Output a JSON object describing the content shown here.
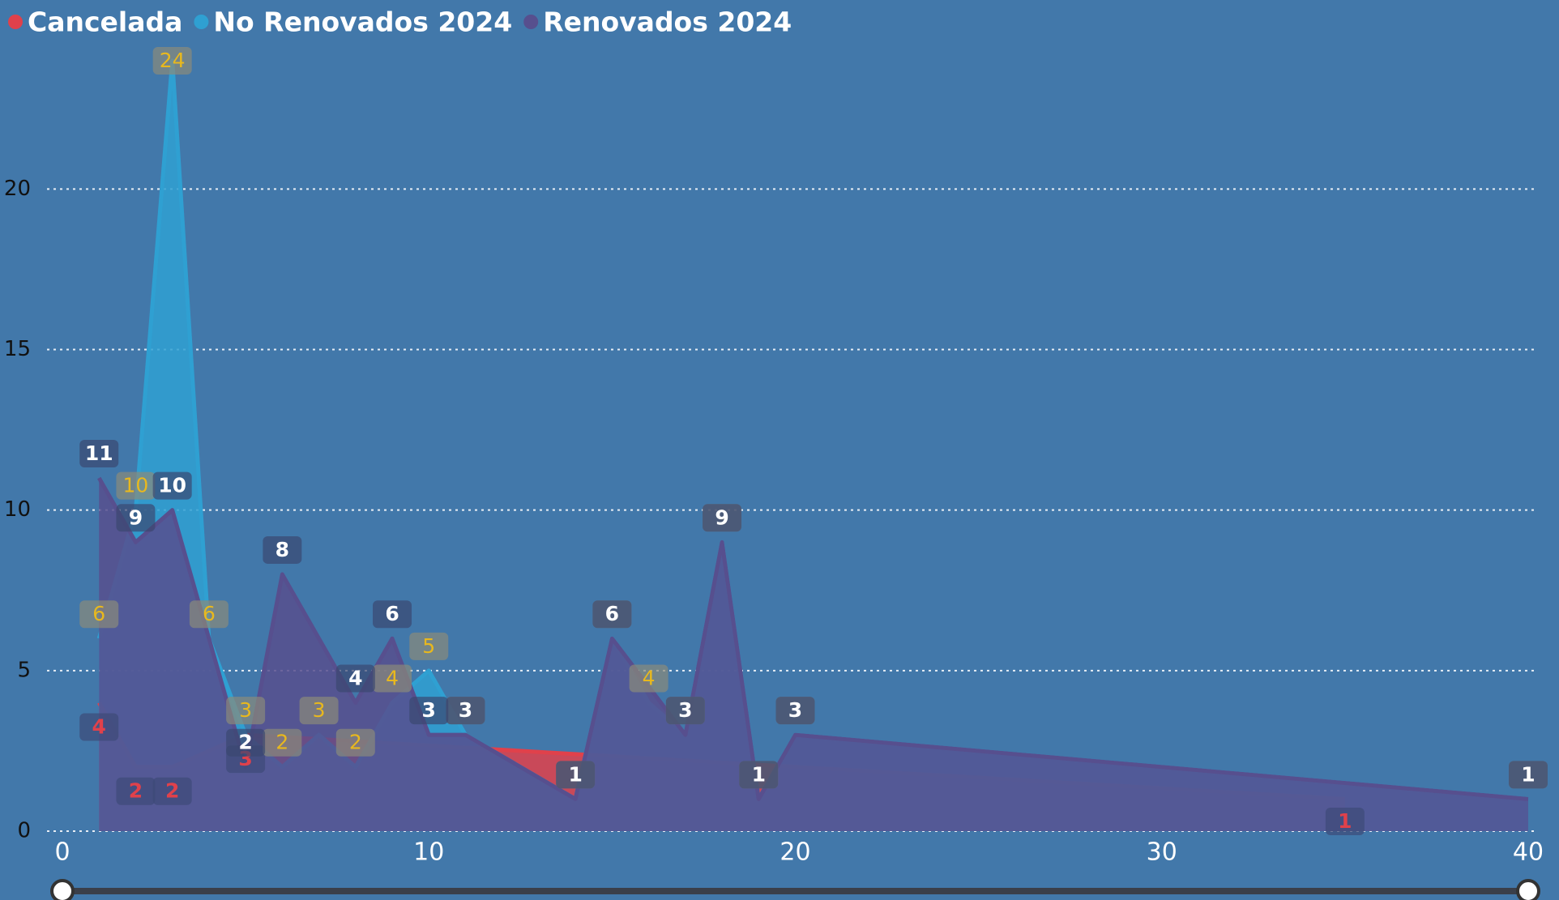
{
  "chart_data": {
    "type": "area",
    "series": [
      {
        "name": "Cancelada",
        "color": "#e0414b",
        "x": [
          1,
          2,
          3,
          5,
          35
        ],
        "values": [
          4,
          2,
          2,
          3,
          1
        ]
      },
      {
        "name": "No Renovados 2024",
        "color": "#2fa0d2",
        "x": [
          1,
          2,
          3,
          4,
          5,
          6,
          7,
          8,
          9,
          10,
          11,
          14,
          15,
          16,
          17,
          18,
          19,
          20,
          40
        ],
        "values": [
          6,
          10,
          24,
          6,
          3,
          2,
          3,
          2,
          4,
          5,
          3,
          1,
          6,
          4,
          3,
          9,
          1,
          3,
          1
        ]
      },
      {
        "name": "Renovados 2024",
        "color": "#574f8e",
        "x": [
          1,
          2,
          3,
          5,
          6,
          8,
          9,
          10,
          11,
          14,
          15,
          17,
          18,
          19,
          20,
          40
        ],
        "values": [
          11,
          9,
          10,
          2,
          8,
          4,
          6,
          3,
          3,
          1,
          6,
          3,
          9,
          1,
          3,
          1
        ]
      }
    ],
    "xlim": [
      0,
      40
    ],
    "xticks": [
      0,
      10,
      20,
      30,
      40
    ],
    "ylim": [
      0,
      24.5
    ],
    "yticks": [
      0,
      5,
      10,
      15,
      20
    ],
    "grid": true,
    "legend": "top-left"
  }
}
